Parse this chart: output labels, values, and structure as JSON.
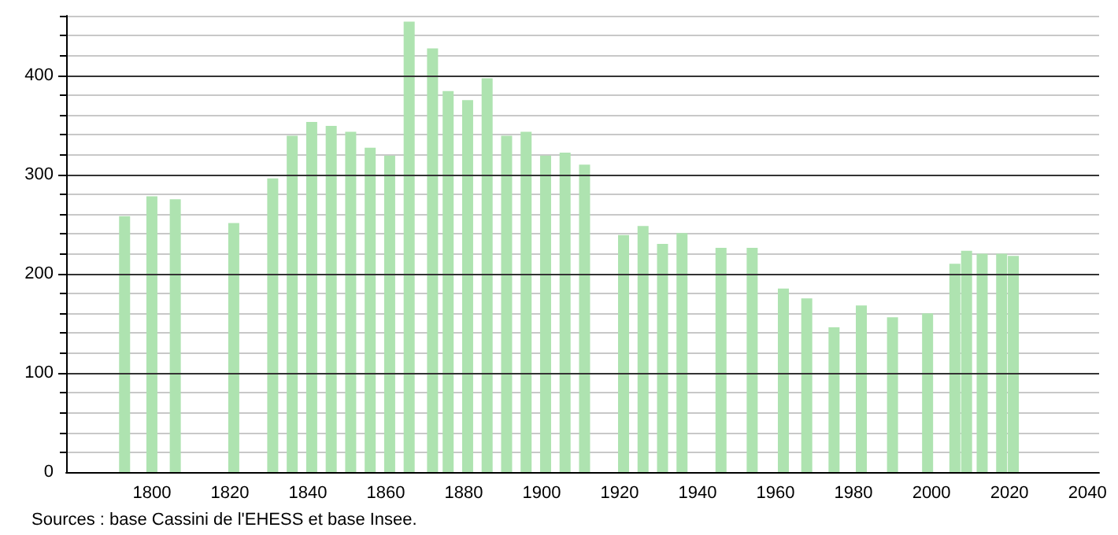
{
  "chart_data": {
    "type": "bar",
    "color": "#aee3b0",
    "x": [
      1793,
      1800,
      1806,
      1821,
      1831,
      1836,
      1841,
      1846,
      1851,
      1856,
      1861,
      1866,
      1872,
      1876,
      1881,
      1886,
      1891,
      1896,
      1901,
      1906,
      1911,
      1921,
      1926,
      1931,
      1936,
      1946,
      1954,
      1962,
      1968,
      1975,
      1982,
      1990,
      1999,
      2006,
      2009,
      2013,
      2018,
      2021
    ],
    "values": [
      258,
      278,
      275,
      251,
      296,
      339,
      353,
      349,
      343,
      327,
      319,
      454,
      427,
      384,
      375,
      397,
      339,
      343,
      319,
      322,
      310,
      239,
      248,
      230,
      241,
      226,
      226,
      185,
      175,
      146,
      168,
      156,
      160,
      210,
      223,
      220,
      220,
      218
    ],
    "xlim": [
      1778,
      2043
    ],
    "xticks": [
      1800,
      1820,
      1840,
      1860,
      1880,
      1900,
      1920,
      1940,
      1960,
      1980,
      2000,
      2020,
      2040
    ],
    "ylim": [
      0,
      460
    ],
    "yticks": [
      0,
      {
        "value": 20,
        "label": null
      },
      {
        "value": 40,
        "label": null
      },
      {
        "value": 60,
        "label": null
      },
      {
        "value": 80,
        "label": null
      },
      100,
      {
        "value": 120,
        "label": null
      },
      {
        "value": 140,
        "label": null
      },
      {
        "value": 160,
        "label": null
      },
      {
        "value": 180,
        "label": null
      },
      200,
      {
        "value": 220,
        "label": null
      },
      {
        "value": 240,
        "label": null
      },
      {
        "value": 260,
        "label": null
      },
      {
        "value": 280,
        "label": null
      },
      300,
      {
        "value": 320,
        "label": null
      },
      {
        "value": 340,
        "label": null
      },
      {
        "value": 360,
        "label": null
      },
      {
        "value": 380,
        "label": null
      },
      400,
      {
        "value": 420,
        "label": null
      },
      {
        "value": 440,
        "label": null
      },
      {
        "value": 460,
        "label": null
      }
    ],
    "grid": "y",
    "annotations": [
      "Sources : base Cassini de l'EHESS et base Insee."
    ]
  }
}
